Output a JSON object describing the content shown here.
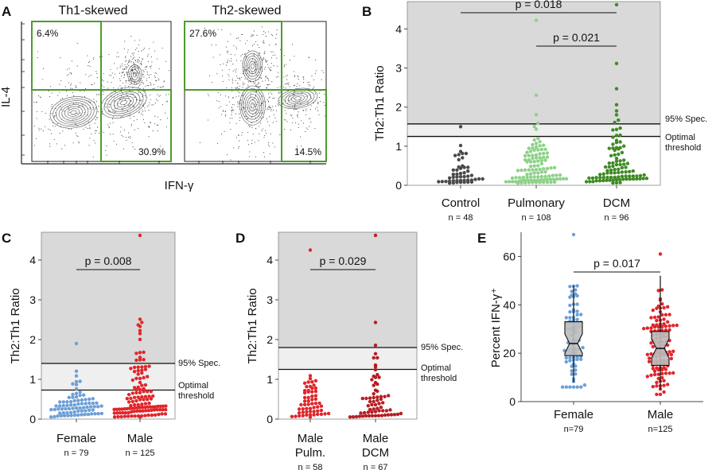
{
  "panel_letters": {
    "a": "A",
    "b": "B",
    "c": "C",
    "d": "D",
    "e": "E"
  },
  "chart_data": [
    {
      "panel": "A",
      "type": "scatter",
      "subtype": "flow-cytometry contour",
      "xlabel": "IFN-γ",
      "ylabel": "IL-4",
      "plots": [
        {
          "title": "Th1-skewed",
          "quadrant_labels": {
            "top_left": "6.4%",
            "bottom_right": "30.9%"
          }
        },
        {
          "title": "Th2-skewed",
          "quadrant_labels": {
            "top_left": "27.6%",
            "bottom_right": "14.5%"
          }
        }
      ]
    },
    {
      "panel": "B",
      "type": "scatter",
      "subtype": "beeswarm",
      "ylabel": "Th2:Th1 Ratio",
      "ylim": [
        0,
        4.7
      ],
      "yticks": [
        0,
        1,
        2,
        3,
        4
      ],
      "categories": [
        "Control",
        "Pulmonary",
        "DCM"
      ],
      "n_labels": [
        "n = 48",
        "n = 108",
        "n = 96"
      ],
      "colors": [
        "#4a4a4a",
        "#8fd18a",
        "#3f8a24"
      ],
      "n": [
        48,
        108,
        96
      ],
      "max_values": [
        1.5,
        4.22,
        4.62
      ],
      "thresholds": [
        {
          "label": "95% Spec.",
          "value": 1.57
        },
        {
          "label": "Optimal threshold",
          "value": 1.25
        }
      ],
      "comparisons": [
        {
          "from": "Control",
          "to": "DCM",
          "label": "p = 0.018"
        },
        {
          "from": "Pulmonary",
          "to": "DCM",
          "label": "p = 0.021"
        }
      ]
    },
    {
      "panel": "C",
      "type": "scatter",
      "subtype": "beeswarm",
      "ylabel": "Th2:Th1 Ratio",
      "ylim": [
        0,
        4.7
      ],
      "yticks": [
        0,
        1,
        2,
        3,
        4
      ],
      "categories": [
        "Female",
        "Male"
      ],
      "n_labels": [
        "n = 79",
        "n = 125"
      ],
      "colors": [
        "#6e9fd6",
        "#e0262b"
      ],
      "n": [
        79,
        125
      ],
      "max_values": [
        1.9,
        4.62
      ],
      "thresholds": [
        {
          "label": "95% Spec.",
          "value": 1.4
        },
        {
          "label": "Optimal threshold",
          "value": 0.73
        }
      ],
      "comparisons": [
        {
          "from": "Female",
          "to": "Male",
          "label": "p = 0.008"
        }
      ]
    },
    {
      "panel": "D",
      "type": "scatter",
      "subtype": "beeswarm",
      "ylabel": "Th2:Th1 Ratio",
      "ylim": [
        0,
        4.7
      ],
      "yticks": [
        0,
        1,
        2,
        3,
        4
      ],
      "categories": [
        "Male Pulm.",
        "Male DCM"
      ],
      "category_lines": [
        [
          "Male",
          "Pulm."
        ],
        [
          "Male",
          "DCM"
        ]
      ],
      "n_labels": [
        "n = 58",
        "n = 67"
      ],
      "colors": [
        "#e0262b",
        "#b51d22"
      ],
      "n": [
        58,
        67
      ],
      "max_values": [
        4.25,
        4.62
      ],
      "thresholds": [
        {
          "label": "95% Spec.",
          "value": 1.8
        },
        {
          "label": "Optimal threshold",
          "value": 1.25
        }
      ],
      "comparisons": [
        {
          "from": "Male Pulm.",
          "to": "Male DCM",
          "label": "p = 0.029"
        }
      ]
    },
    {
      "panel": "E",
      "type": "scatter",
      "subtype": "beeswarm with notched box plot",
      "ylabel": "Percent IFN-γ⁺",
      "ylim": [
        0,
        70
      ],
      "yticks": [
        0,
        20,
        40,
        60
      ],
      "categories": [
        "Female",
        "Male"
      ],
      "n_labels": [
        "n=79",
        "n=125"
      ],
      "colors": [
        "#6e9fd6",
        "#e0262b"
      ],
      "n": [
        79,
        125
      ],
      "box": [
        {
          "q1": 19,
          "median": 24,
          "q3": 33,
          "whisker_low": 8,
          "whisker_high": 48
        },
        {
          "q1": 15,
          "median": 22,
          "q3": 29,
          "whisker_low": 5,
          "whisker_high": 52
        }
      ],
      "comparisons": [
        {
          "from": "Female",
          "to": "Male",
          "label": "p = 0.017"
        }
      ]
    }
  ]
}
